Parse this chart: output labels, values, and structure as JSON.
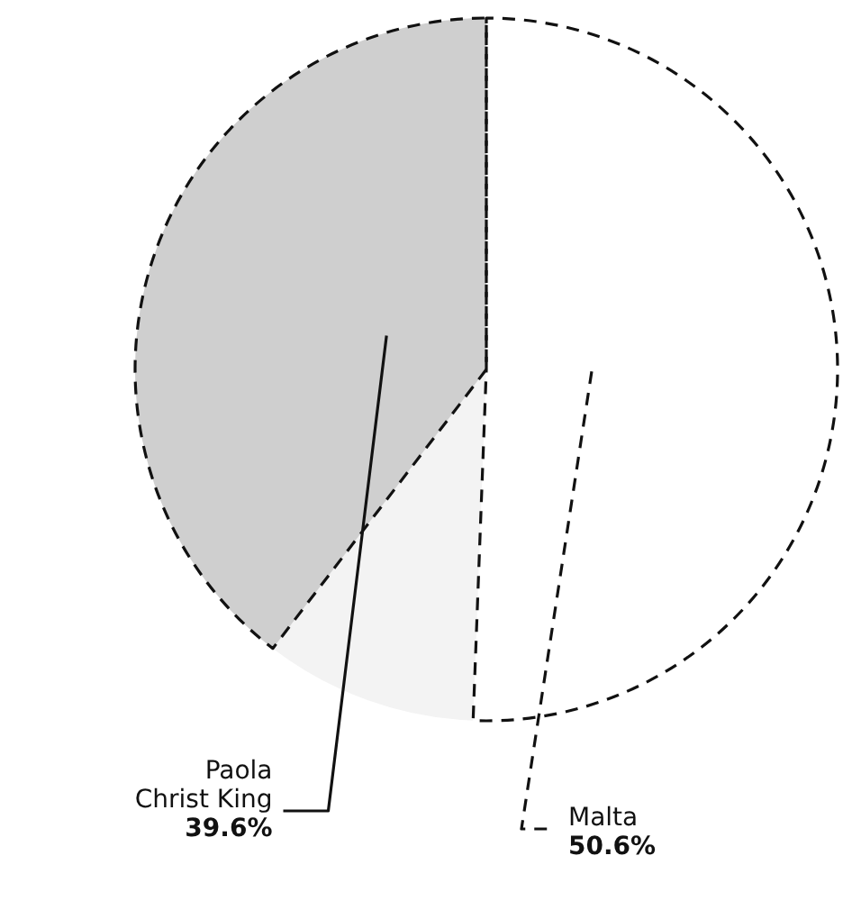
{
  "chart_data": {
    "type": "pie",
    "categories": [
      "Malta",
      null,
      "Paola Christ King"
    ],
    "values": [
      50.6,
      9.8,
      39.6
    ],
    "colors": [
      "#ffffff",
      "#f3f3f3",
      "#cfcfcf"
    ],
    "value_labels": [
      "50.6%",
      null,
      "39.6%"
    ],
    "line_style": "dashed",
    "legend": false
  }
}
